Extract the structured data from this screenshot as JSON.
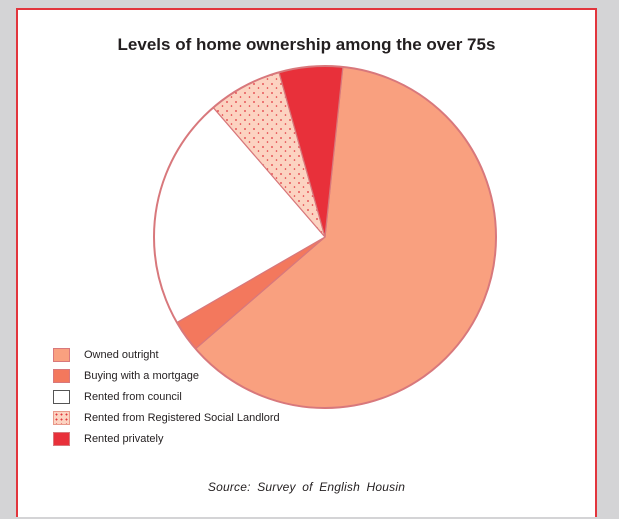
{
  "chart_data": {
    "type": "pie",
    "title": "Levels of home ownership among the over 75s",
    "source": "Source:  Survey of English  Housin",
    "start_angle_deg": 6,
    "slices": [
      {
        "label": "Owned outright",
        "value": 62,
        "color": "#f9a07f",
        "pattern": "solid"
      },
      {
        "label": "Buying with a mortgage",
        "value": 3,
        "color": "#f3785d",
        "pattern": "solid"
      },
      {
        "label": "Rented from council",
        "value": 22,
        "color": "#ffffff",
        "pattern": "solid"
      },
      {
        "label": "Rented from Registered Social  Landlord",
        "value": 7,
        "color": "#fcd3c1",
        "pattern": "dots"
      },
      {
        "label": "Rented privately",
        "value": 6,
        "color": "#e8303a",
        "pattern": "solid"
      }
    ],
    "legend_position": "bottom-left",
    "border_color": "#e2353d"
  }
}
